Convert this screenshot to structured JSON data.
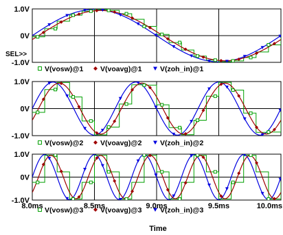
{
  "chart_data": {
    "type": "line",
    "x_unit_ms": true,
    "x_ticks": [
      "8.0ms",
      "8.5ms",
      "9.0ms",
      "9.5ms",
      "10.0ms"
    ],
    "x_range_ms": [
      8.0,
      10.0
    ],
    "x_title": "Time",
    "sel_label": "SEL>>",
    "grid": true,
    "colors": {
      "vosw": "#00a000",
      "voavg": "#a00000",
      "zoh_in": "#0000e0"
    },
    "panels": [
      {
        "y_ticks": [
          "1.0V",
          "0V",
          "-1.0V"
        ],
        "y_range": [
          -1.0,
          1.0
        ],
        "input_freq_khz": 0.5,
        "sample_interval_ms": 0.1,
        "legend": [
          "V(vosw)@1",
          "V(voavg)@1",
          "V(zoh_in)@1"
        ],
        "sel": true
      },
      {
        "y_ticks": [
          "1.0V",
          "0V",
          "-1.0V"
        ],
        "y_range": [
          -1.0,
          1.0
        ],
        "input_freq_khz": 1.5,
        "sample_interval_ms": 0.1,
        "legend": [
          "V(vosw)@2",
          "V(voavg)@2",
          "V(zoh_in)@2"
        ],
        "sel": false
      },
      {
        "y_ticks": [
          "1.0V",
          "0V",
          "-1.0V"
        ],
        "y_range": [
          -1.0,
          1.0
        ],
        "input_freq_khz": 2.5,
        "sample_interval_ms": 0.1,
        "legend": [
          "V(vosw)@3",
          "V(voavg)@3",
          "V(zoh_in)@3"
        ],
        "sel": false
      }
    ]
  }
}
